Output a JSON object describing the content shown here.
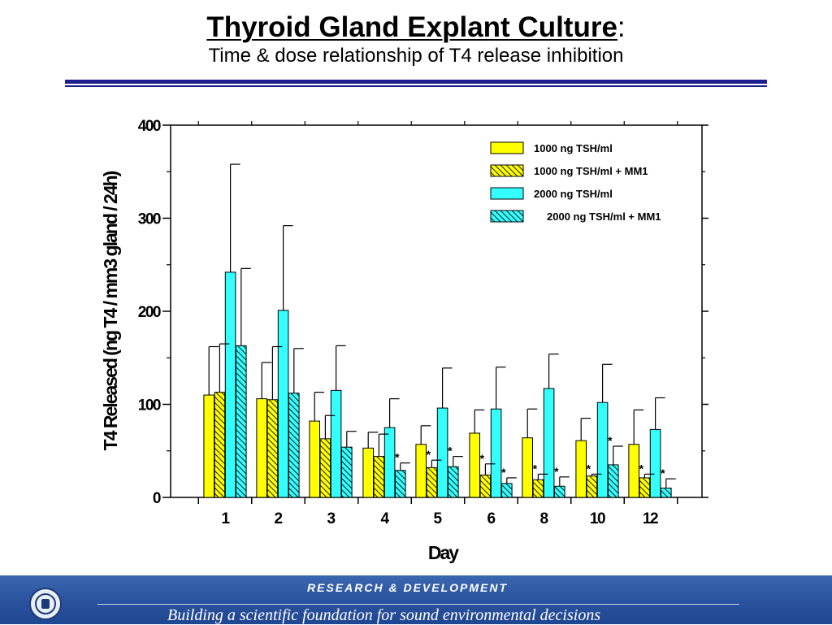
{
  "slide": {
    "title": "Thyroid Gland Explant Culture",
    "title_suffix": ":",
    "subtitle": "Time & dose relationship of T4 release inhibition"
  },
  "footer": {
    "heading": "RESEARCH &  DEVELOPMENT",
    "tagline": "Building a scientific foundation for sound environmental decisions",
    "logo": "epa-seal-icon"
  },
  "colors": {
    "title_rule": "#1d1f8c",
    "yellow": "#ffff00",
    "cyan": "#33ffff",
    "footer_bg": "#2a529e"
  },
  "chart_data": {
    "type": "bar",
    "xlabel": "Day",
    "ylabel": "T4 Released (ng T4 / mm3 gland / 24h)",
    "ylim": [
      0,
      400
    ],
    "yticks": [
      0,
      100,
      200,
      300,
      400
    ],
    "categories": [
      "1",
      "2",
      "3",
      "4",
      "5",
      "6",
      "8",
      "10",
      "12"
    ],
    "legend_position": "top-right",
    "series": [
      {
        "name": "1000 ng TSH/ml",
        "color": "#ffff00",
        "pattern": "solid",
        "values": [
          110,
          106,
          82,
          53,
          57,
          69,
          64,
          61,
          57
        ],
        "errors": [
          52,
          39,
          31,
          17,
          20,
          25,
          31,
          24,
          37
        ],
        "significant": [
          false,
          false,
          false,
          false,
          false,
          false,
          false,
          false,
          false
        ]
      },
      {
        "name": "1000 ng TSH/ml + MM1",
        "color": "#ffff00",
        "pattern": "hatched",
        "values": [
          113,
          105,
          63,
          44,
          32,
          24,
          19,
          23,
          21
        ],
        "errors": [
          52,
          57,
          25,
          24,
          8,
          12,
          6,
          2,
          4
        ],
        "significant": [
          false,
          false,
          false,
          false,
          true,
          true,
          true,
          true,
          true
        ]
      },
      {
        "name": "2000 ng TSH/ml",
        "color": "#33ffff",
        "pattern": "solid",
        "values": [
          242,
          201,
          115,
          75,
          96,
          95,
          117,
          102,
          73
        ],
        "errors": [
          116,
          91,
          48,
          31,
          43,
          45,
          37,
          41,
          34
        ],
        "significant": [
          false,
          false,
          false,
          false,
          false,
          false,
          false,
          false,
          false
        ]
      },
      {
        "name": "2000 ng TSH/ml + MM1",
        "color": "#33ffff",
        "pattern": "hatched",
        "values": [
          163,
          112,
          54,
          29,
          33,
          15,
          12,
          35,
          10
        ],
        "errors": [
          83,
          48,
          17,
          8,
          11,
          6,
          10,
          20,
          10
        ],
        "significant": [
          false,
          false,
          false,
          true,
          true,
          true,
          true,
          true,
          true
        ]
      }
    ],
    "significance_marker": "*"
  }
}
